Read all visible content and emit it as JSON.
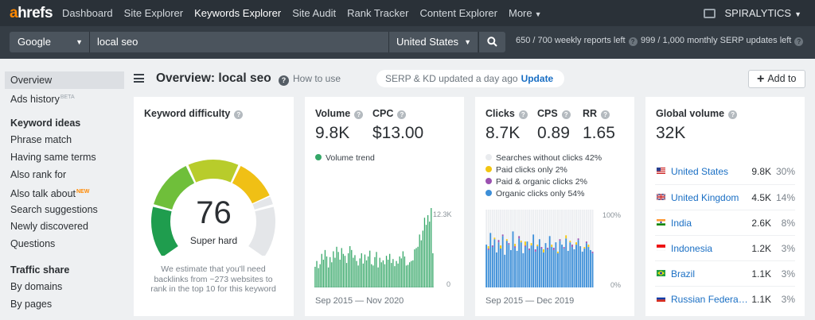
{
  "nav": {
    "logo_a": "a",
    "logo_rest": "hrefs",
    "items": [
      {
        "label": "Dashboard",
        "active": false
      },
      {
        "label": "Site Explorer",
        "active": false
      },
      {
        "label": "Keywords Explorer",
        "active": true
      },
      {
        "label": "Site Audit",
        "active": false
      },
      {
        "label": "Rank Tracker",
        "active": false
      },
      {
        "label": "Content Explorer",
        "active": false
      }
    ],
    "more_label": "More",
    "account": "SPIRALYTICS",
    "colors": {
      "bar": "#2a3138",
      "logo_accent": "#ff8800"
    }
  },
  "search": {
    "engine": "Google",
    "keyword": "local seo",
    "country": "United States",
    "weekly_reports": "650 / 700 weekly reports left",
    "serp_updates": "999 / 1,000 monthly SERP updates left"
  },
  "sidebar": {
    "overview": "Overview",
    "ads_history": "Ads history",
    "ads_badge": "BETA",
    "keyword_ideas_head": "Keyword ideas",
    "phrase_match": "Phrase match",
    "having_same_terms": "Having same terms",
    "also_rank_for": "Also rank for",
    "also_talk_about": "Also talk about",
    "new_badge": "NEW",
    "search_suggestions": "Search suggestions",
    "newly_discovered": "Newly discovered",
    "questions": "Questions",
    "traffic_share_head": "Traffic share",
    "by_domains": "By domains",
    "by_pages": "By pages"
  },
  "header": {
    "title": "Overview: local seo",
    "how_to_use": "How to use",
    "serp_status": "SERP & KD updated a day ago",
    "update_label": "Update",
    "add_to": "Add to"
  },
  "kd": {
    "title": "Keyword difficulty",
    "value": "76",
    "label": "Super hard",
    "score": 76,
    "description": "We estimate that you'll need backlinks from ~273 websites to rank in the top 10 for this keyword"
  },
  "volume": {
    "volume_label": "Volume",
    "volume_value": "9.8K",
    "cpc_label": "CPC",
    "cpc_value": "$13.00",
    "trend_label": "Volume trend",
    "trend_color": "#35a768",
    "y_max_label": "12.3K",
    "y_min_label": "0",
    "range": "Sep 2015 — Nov 2020"
  },
  "clicks": {
    "clicks_label": "Clicks",
    "clicks_value": "8.7K",
    "cps_label": "CPS",
    "cps_value": "0.89",
    "rr_label": "RR",
    "rr_value": "1.65",
    "legend": [
      {
        "label": "Searches without clicks 42%",
        "color": "#e9ebee"
      },
      {
        "label": "Paid clicks only 2%",
        "color": "#f2c511"
      },
      {
        "label": "Paid & organic clicks 2%",
        "color": "#9b51b0"
      },
      {
        "label": "Organic clicks only 54%",
        "color": "#3d8fd8"
      }
    ],
    "y_max_label": "100%",
    "y_min_label": "0%",
    "range": "Sep 2015 — Dec 2019"
  },
  "global": {
    "title": "Global volume",
    "value": "32K",
    "countries": [
      {
        "name": "United States",
        "volume": "9.8K",
        "pct": "30%"
      },
      {
        "name": "United Kingdom",
        "volume": "4.5K",
        "pct": "14%"
      },
      {
        "name": "India",
        "volume": "2.6K",
        "pct": "8%"
      },
      {
        "name": "Indonesia",
        "volume": "1.2K",
        "pct": "3%"
      },
      {
        "name": "Brazil",
        "volume": "1.1K",
        "pct": "3%"
      },
      {
        "name": "Russian Federat…",
        "volume": "1.1K",
        "pct": "3%"
      }
    ]
  },
  "chart_data": [
    {
      "type": "bar",
      "title": "Volume trend",
      "x_range": [
        "Sep 2015",
        "Nov 2020"
      ],
      "ylim": [
        0,
        12300
      ],
      "values": [
        3200,
        4100,
        3000,
        3600,
        5200,
        4300,
        5800,
        4800,
        3100,
        4700,
        3900,
        5600,
        4600,
        6300,
        5500,
        4300,
        6100,
        5200,
        4900,
        3800,
        5300,
        6400,
        5800,
        4600,
        5000,
        4100,
        3400,
        4500,
        5300,
        3700,
        5100,
        4200,
        4800,
        5700,
        3600,
        3400,
        4700,
        5500,
        3100,
        4600,
        3900,
        4200,
        3600,
        4900,
        4300,
        5200,
        3800,
        4400,
        3300,
        4100,
        3700,
        4800,
        4500,
        5600,
        4800,
        3400,
        3500,
        3900,
        4100,
        4200,
        5900,
        6100,
        6300,
        8200,
        7300,
        8800,
        10800,
        9700,
        11200,
        10200,
        12300,
        5300
      ],
      "color": "#35a768"
    },
    {
      "type": "bar",
      "title": "Clicks",
      "x_range": [
        "Sep 2015",
        "Dec 2019"
      ],
      "ylim": [
        0,
        100
      ],
      "series": [
        {
          "name": "Organic clicks only",
          "values": [
            55,
            48,
            70,
            52,
            62,
            45,
            58,
            50,
            66,
            42,
            60,
            55,
            48,
            72,
            51,
            47,
            63,
            58,
            44,
            52,
            59,
            48,
            54,
            68,
            46,
            53,
            62,
            50,
            45,
            57,
            49,
            66,
            52,
            48,
            58,
            44,
            60,
            55,
            50,
            63,
            47,
            58,
            52,
            49,
            55,
            61,
            53,
            46,
            50,
            57,
            52,
            48,
            44
          ]
        },
        {
          "name": "Paid clicks only",
          "values": [
            0,
            3,
            0,
            0,
            2,
            0,
            0,
            4,
            0,
            0,
            2,
            0,
            0,
            0,
            3,
            0,
            0,
            2,
            0,
            5,
            0,
            0,
            3,
            0,
            0,
            2,
            0,
            0,
            4,
            0,
            0,
            0,
            3,
            0,
            0,
            2,
            0,
            0,
            0,
            4,
            0,
            2,
            0,
            0,
            3,
            0,
            0,
            0,
            2,
            0,
            3,
            0,
            0
          ]
        },
        {
          "name": "Paid & organic clicks",
          "values": [
            0,
            2,
            0,
            2,
            0,
            0,
            3,
            0,
            2,
            0,
            0,
            2,
            0,
            0,
            2,
            0,
            3,
            0,
            0,
            2,
            0,
            2,
            0,
            0,
            3,
            0,
            0,
            2,
            0,
            0,
            2,
            0,
            0,
            3,
            0,
            0,
            2,
            0,
            2,
            0,
            0,
            0,
            3,
            0,
            0,
            2,
            0,
            0,
            0,
            2,
            0,
            0,
            2
          ]
        }
      ]
    }
  ]
}
